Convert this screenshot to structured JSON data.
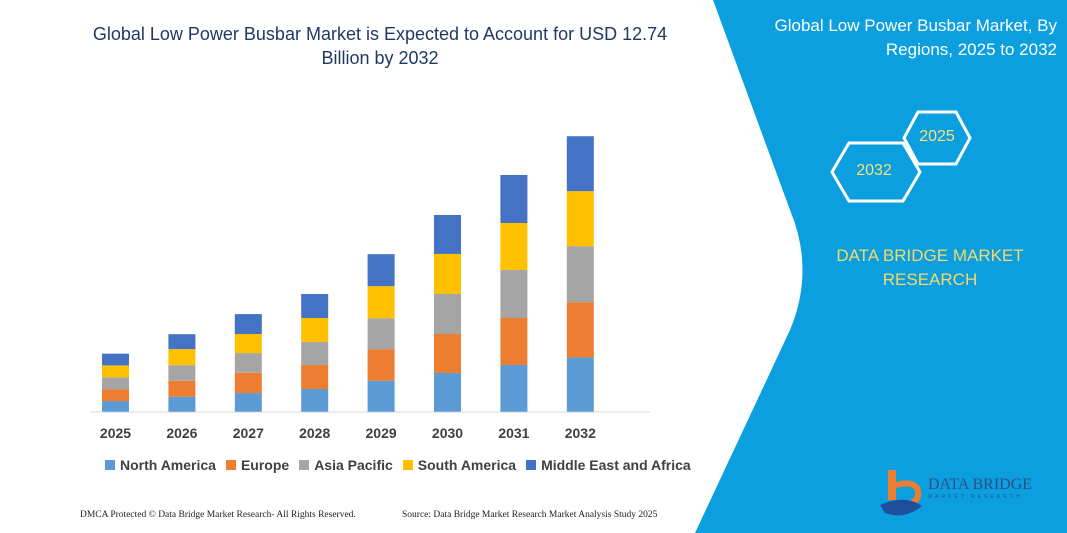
{
  "colors": {
    "panel": "#0b9fdf",
    "accent_text": "#f5d96b"
  },
  "left": {
    "title": "Global Low Power Busbar Market is Expected to Account for USD 12.74 Billion by 2032"
  },
  "right": {
    "title": "Global Low Power Busbar Market, By Regions, 2025 to 2032",
    "hex_start": "2025",
    "hex_end": "2032",
    "brand": "DATA BRIDGE MARKET RESEARCH",
    "logo_text": "DATA BRIDGE",
    "logo_sub": "MARKET RESEARCH"
  },
  "footer": {
    "left": "DMCA Protected © Data Bridge Market Research-  All Rights Reserved.",
    "right": "Source: Data Bridge Market Research  Market Analysis Study 2025"
  },
  "chart_data": {
    "type": "bar",
    "stacked": true,
    "title": "Global Low Power Busbar Market is Expected to Account for USD 12.74 Billion by 2032",
    "categories": [
      "2025",
      "2026",
      "2027",
      "2028",
      "2029",
      "2030",
      "2031",
      "2032"
    ],
    "series": [
      {
        "name": "North America",
        "color": "#5b9bd5",
        "values": [
          0.49,
          0.69,
          0.86,
          1.05,
          1.43,
          1.79,
          2.16,
          2.51
        ]
      },
      {
        "name": "Europe",
        "color": "#ed7d31",
        "values": [
          0.55,
          0.74,
          0.94,
          1.11,
          1.46,
          1.8,
          2.17,
          2.55
        ]
      },
      {
        "name": "Asia Pacific",
        "color": "#a5a5a5",
        "values": [
          0.55,
          0.72,
          0.91,
          1.06,
          1.43,
          1.85,
          2.22,
          2.59
        ]
      },
      {
        "name": "South America",
        "color": "#ffc000",
        "values": [
          0.55,
          0.74,
          0.88,
          1.11,
          1.48,
          1.85,
          2.17,
          2.54
        ]
      },
      {
        "name": "Middle East and Africa",
        "color": "#4472c4",
        "values": [
          0.54,
          0.69,
          0.92,
          1.11,
          1.48,
          1.8,
          2.22,
          2.54
        ]
      }
    ],
    "ylim": [
      0,
      12.74
    ],
    "grid": false,
    "legend": "bottom"
  }
}
